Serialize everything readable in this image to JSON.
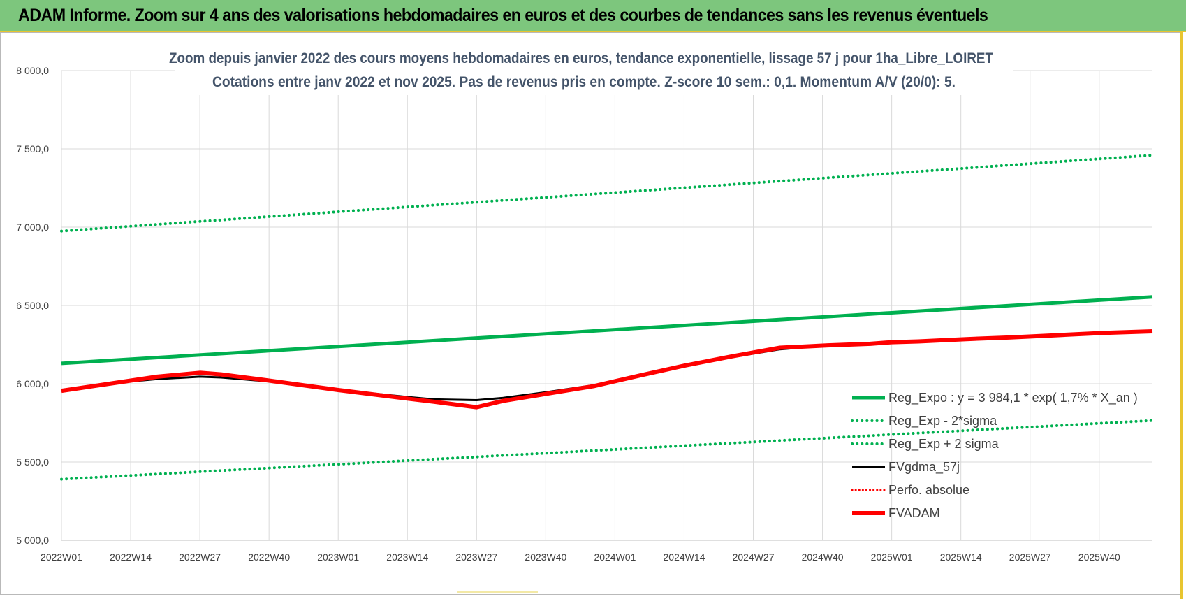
{
  "banner": {
    "title": "ADAM Informe. Zoom sur 4 ans des valorisations hebdomadaires en euros et des courbes de tendances sans les revenus éventuels"
  },
  "colors": {
    "banner_bg": "#7dc67d",
    "trend": "#00b050",
    "fvadam": "#ff0000",
    "fvgdma": "#000000",
    "grid": "#d9d9d9",
    "title": "#44546a"
  },
  "chart_data": {
    "type": "line",
    "title": "Zoom depuis janvier 2022 des cours moyens hebdomadaires en euros, tendance exponentielle, lissage 57 j pour 1ha_Libre_LOIRET",
    "subtitle": "Cotations entre janv 2022 et nov 2025. Pas de revenus pris en compte. Z-score 10 sem.: 0,1. Momentum A/V (20/0): 5.",
    "x_tick_labels": [
      "2022W01",
      "2022W14",
      "2022W27",
      "2022W40",
      "2023W01",
      "2023W14",
      "2023W27",
      "2023W40",
      "2024W01",
      "2024W14",
      "2024W27",
      "2024W40",
      "2025W01",
      "2025W14",
      "2025W27",
      "2025W40"
    ],
    "x_tick_step_weeks": 13,
    "x_range_weeks": [
      0,
      205
    ],
    "y_ticks": [
      5000,
      5500,
      6000,
      6500,
      7000,
      7500,
      8000
    ],
    "y_tick_labels": [
      "5 000,0",
      "5 500,0",
      "6 000,0",
      "6 500,0",
      "7 000,0",
      "7 500,0",
      "8 000,0"
    ],
    "ylim": [
      5000,
      8000
    ],
    "grid": true,
    "legend_position": "bottom-right",
    "legend": [
      {
        "label": "Reg_Expo : y = 3 984,1 * exp( 1,7% *  X_an )",
        "style": "solid-thick",
        "color": "#00b050"
      },
      {
        "label": "Reg_Exp - 2*sigma",
        "style": "dotted",
        "color": "#00b050"
      },
      {
        "label": "Reg_Exp + 2 sigma",
        "style": "dotted",
        "color": "#00b050"
      },
      {
        "label": "FVgdma_57j",
        "style": "solid",
        "color": "#000000"
      },
      {
        "label": "Perfo. absolue",
        "style": "dotted-thin",
        "color": "#ff0000"
      },
      {
        "label": "FVADAM",
        "style": "solid-thick",
        "color": "#ff0000"
      }
    ],
    "series": [
      {
        "name": "Reg_Expo : y = 3 984,1 * exp( 1,7% *  X_an )",
        "color": "#00b050",
        "style": "solid-thick",
        "x": [
          0,
          205
        ],
        "y": [
          6130,
          6555
        ]
      },
      {
        "name": "Reg_Exp + 2 sigma",
        "color": "#00b050",
        "style": "dotted",
        "x": [
          0,
          205
        ],
        "y": [
          6975,
          7460
        ]
      },
      {
        "name": "Reg_Exp - 2*sigma",
        "color": "#00b050",
        "style": "dotted",
        "x": [
          0,
          205
        ],
        "y": [
          5390,
          5765
        ]
      },
      {
        "name": "FVgdma_57j",
        "color": "#000000",
        "style": "solid",
        "x": [
          0,
          5,
          10,
          13,
          18,
          26,
          30,
          39,
          52,
          65,
          70,
          78,
          83,
          91,
          100,
          109,
          117,
          126,
          135,
          144,
          152,
          156,
          161,
          170,
          178,
          187,
          196,
          205
        ],
        "y": [
          5955,
          5980,
          6005,
          6015,
          6030,
          6045,
          6040,
          6015,
          5960,
          5915,
          5900,
          5895,
          5910,
          5945,
          5990,
          6050,
          6110,
          6170,
          6220,
          6245,
          6255,
          6265,
          6270,
          6285,
          6295,
          6310,
          6325,
          6335
        ]
      },
      {
        "name": "FVADAM",
        "color": "#ff0000",
        "style": "solid-thick",
        "x": [
          0,
          5,
          10,
          13,
          18,
          26,
          30,
          39,
          52,
          65,
          70,
          78,
          83,
          91,
          100,
          109,
          117,
          126,
          135,
          144,
          152,
          156,
          161,
          170,
          178,
          187,
          196,
          205
        ],
        "y": [
          5955,
          5980,
          6005,
          6020,
          6045,
          6070,
          6060,
          6020,
          5960,
          5905,
          5885,
          5850,
          5890,
          5935,
          5985,
          6055,
          6115,
          6175,
          6230,
          6245,
          6255,
          6265,
          6270,
          6285,
          6295,
          6310,
          6325,
          6335
        ]
      }
    ]
  }
}
